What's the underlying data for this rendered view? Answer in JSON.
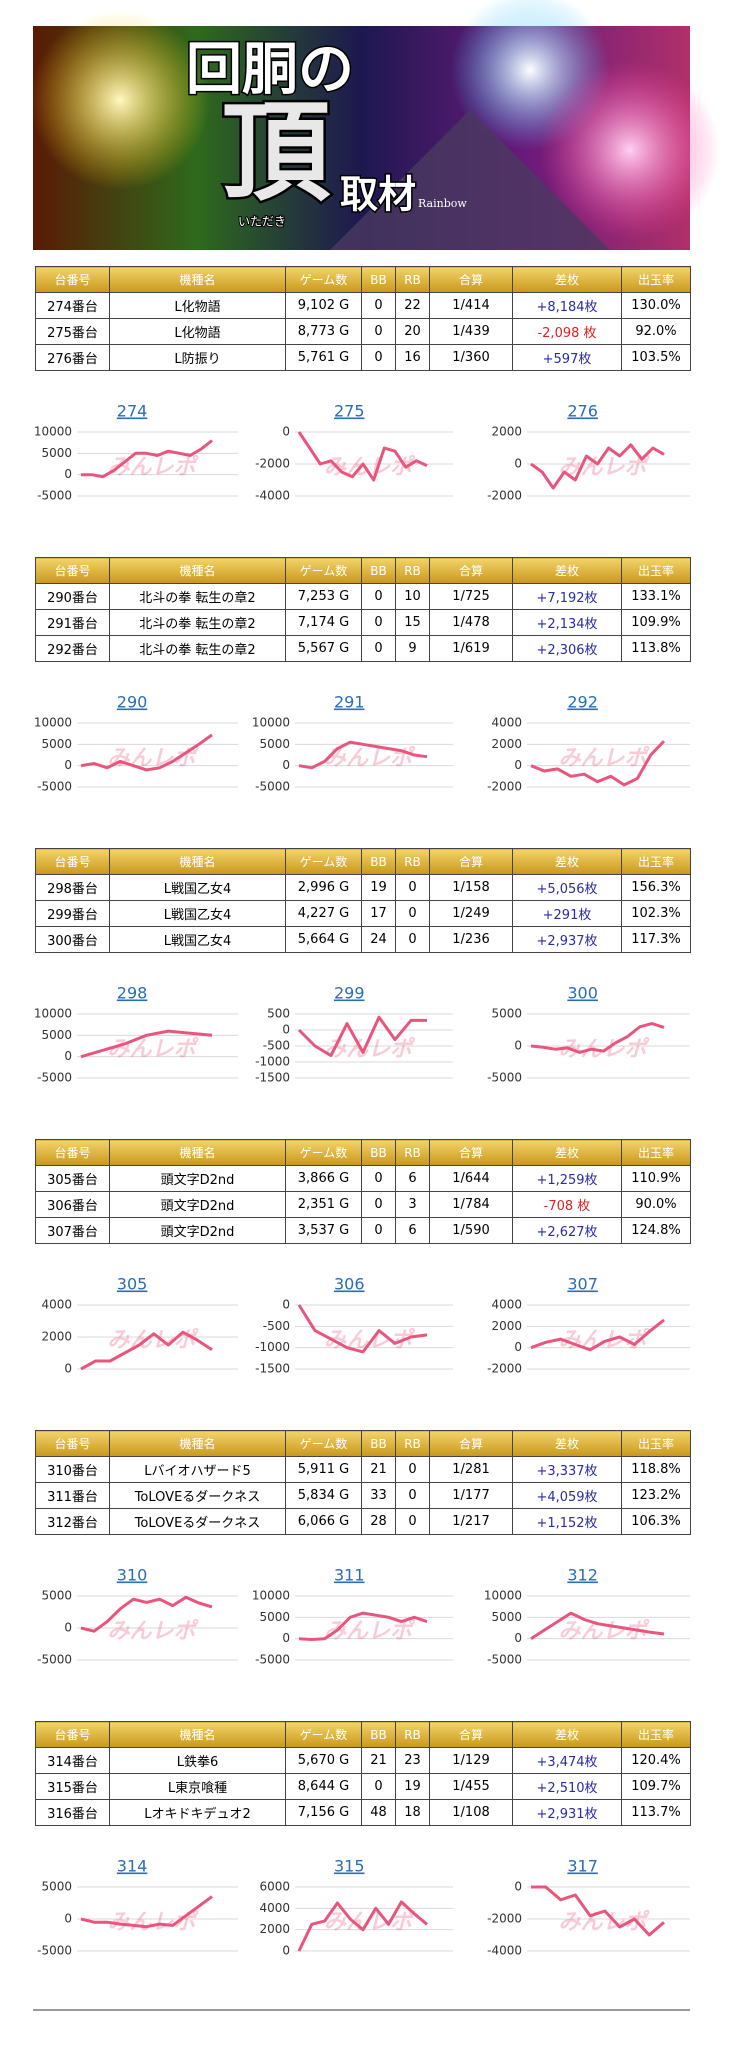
{
  "banner": {
    "line1": "回胴の",
    "big": "頂",
    "ruby": "いただき",
    "line2": "取材",
    "sub": "Rainbow"
  },
  "watermark": "みんレポ",
  "table_header": [
    "台番号",
    "機種名",
    "ゲーム数",
    "BB",
    "RB",
    "合算",
    "差枚",
    "出玉率"
  ],
  "tables": [
    {
      "rows": [
        [
          "274番台",
          "L化物語",
          "9,102 G",
          "0",
          "22",
          "1/414",
          "+8,184枚",
          "130.0%"
        ],
        [
          "275番台",
          "L化物語",
          "8,773 G",
          "0",
          "20",
          "1/439",
          "-2,098 枚",
          "92.0%"
        ],
        [
          "276番台",
          "L防振り",
          "5,761 G",
          "0",
          "16",
          "1/360",
          "+597枚",
          "103.5%"
        ]
      ]
    },
    {
      "rows": [
        [
          "290番台",
          "北斗の拳 転生の章2",
          "7,253 G",
          "0",
          "10",
          "1/725",
          "+7,192枚",
          "133.1%"
        ],
        [
          "291番台",
          "北斗の拳 転生の章2",
          "7,174 G",
          "0",
          "15",
          "1/478",
          "+2,134枚",
          "109.9%"
        ],
        [
          "292番台",
          "北斗の拳 転生の章2",
          "5,567 G",
          "0",
          "9",
          "1/619",
          "+2,306枚",
          "113.8%"
        ]
      ]
    },
    {
      "rows": [
        [
          "298番台",
          "L戦国乙女4",
          "2,996 G",
          "19",
          "0",
          "1/158",
          "+5,056枚",
          "156.3%"
        ],
        [
          "299番台",
          "L戦国乙女4",
          "4,227 G",
          "17",
          "0",
          "1/249",
          "+291枚",
          "102.3%"
        ],
        [
          "300番台",
          "L戦国乙女4",
          "5,664 G",
          "24",
          "0",
          "1/236",
          "+2,937枚",
          "117.3%"
        ]
      ]
    },
    {
      "rows": [
        [
          "305番台",
          "頭文字D2nd",
          "3,866 G",
          "0",
          "6",
          "1/644",
          "+1,259枚",
          "110.9%"
        ],
        [
          "306番台",
          "頭文字D2nd",
          "2,351 G",
          "0",
          "3",
          "1/784",
          "-708 枚",
          "90.0%"
        ],
        [
          "307番台",
          "頭文字D2nd",
          "3,537 G",
          "0",
          "6",
          "1/590",
          "+2,627枚",
          "124.8%"
        ]
      ]
    },
    {
      "rows": [
        [
          "310番台",
          "Lバイオハザード5",
          "5,911 G",
          "21",
          "0",
          "1/281",
          "+3,337枚",
          "118.8%"
        ],
        [
          "311番台",
          "ToLOVEるダークネス",
          "5,834 G",
          "33",
          "0",
          "1/177",
          "+4,059枚",
          "123.2%"
        ],
        [
          "312番台",
          "ToLOVEるダークネス",
          "6,066 G",
          "28",
          "0",
          "1/217",
          "+1,152枚",
          "106.3%"
        ]
      ]
    },
    {
      "rows": [
        [
          "314番台",
          "L鉄拳6",
          "5,670 G",
          "21",
          "23",
          "1/129",
          "+3,474枚",
          "120.4%"
        ],
        [
          "315番台",
          "L東京喰種",
          "8,644 G",
          "0",
          "19",
          "1/455",
          "+2,510枚",
          "109.7%"
        ],
        [
          "316番台",
          "Lオキドキデュオ2",
          "7,156 G",
          "48",
          "18",
          "1/108",
          "+2,931枚",
          "113.7%"
        ]
      ]
    }
  ],
  "chart_data": [
    {
      "type": "line",
      "title": "274",
      "color": "#e9557c",
      "ylim": [
        -5000,
        10000
      ],
      "yticks": [
        -5000,
        0,
        5000,
        10000
      ],
      "values": [
        0,
        0,
        -500,
        1000,
        3000,
        5000,
        5000,
        4500,
        5500,
        5000,
        4500,
        6000,
        8000
      ]
    },
    {
      "type": "line",
      "title": "275",
      "color": "#e9557c",
      "ylim": [
        -4000,
        0
      ],
      "yticks": [
        -4000,
        -2000,
        0
      ],
      "values": [
        0,
        -1000,
        -2000,
        -1800,
        -2500,
        -2800,
        -2000,
        -3000,
        -1000,
        -1200,
        -2200,
        -1800,
        -2100
      ]
    },
    {
      "type": "line",
      "title": "276",
      "color": "#e9557c",
      "ylim": [
        -2000,
        2000
      ],
      "yticks": [
        -2000,
        0,
        2000
      ],
      "values": [
        0,
        -500,
        -1500,
        -500,
        -1000,
        500,
        0,
        1000,
        500,
        1200,
        300,
        1000,
        600
      ]
    },
    {
      "type": "line",
      "title": "290",
      "color": "#e9557c",
      "ylim": [
        -5000,
        10000
      ],
      "yticks": [
        -5000,
        0,
        5000,
        10000
      ],
      "values": [
        0,
        500,
        -500,
        1000,
        0,
        -1000,
        -500,
        1000,
        3000,
        5000,
        7200
      ]
    },
    {
      "type": "line",
      "title": "291",
      "color": "#e9557c",
      "ylim": [
        -5000,
        10000
      ],
      "yticks": [
        -5000,
        0,
        5000,
        10000
      ],
      "values": [
        0,
        -500,
        1000,
        4000,
        5500,
        5000,
        4500,
        4000,
        3500,
        2500,
        2100
      ]
    },
    {
      "type": "line",
      "title": "292",
      "color": "#e9557c",
      "ylim": [
        -2000,
        4000
      ],
      "yticks": [
        -2000,
        0,
        2000,
        4000
      ],
      "values": [
        0,
        -500,
        -300,
        -1000,
        -800,
        -1500,
        -1000,
        -1800,
        -1200,
        1000,
        2300
      ]
    },
    {
      "type": "line",
      "title": "298",
      "color": "#e9557c",
      "ylim": [
        -5000,
        10000
      ],
      "yticks": [
        -5000,
        0,
        5000,
        10000
      ],
      "values": [
        0,
        1500,
        3000,
        5000,
        6000,
        5500,
        5000
      ]
    },
    {
      "type": "line",
      "title": "299",
      "color": "#e9557c",
      "ylim": [
        -1500,
        500
      ],
      "yticks": [
        -1500,
        -1000,
        -500,
        0,
        500
      ],
      "values": [
        0,
        -500,
        -800,
        200,
        -700,
        400,
        -300,
        300,
        300
      ]
    },
    {
      "type": "line",
      "title": "300",
      "color": "#e9557c",
      "ylim": [
        -5000,
        5000
      ],
      "yticks": [
        -5000,
        0,
        5000
      ],
      "values": [
        0,
        -200,
        -500,
        -300,
        -1000,
        -500,
        -800,
        500,
        1500,
        3000,
        3500,
        2900
      ]
    },
    {
      "type": "line",
      "title": "305",
      "color": "#e9557c",
      "ylim": [
        0,
        4000
      ],
      "yticks": [
        0,
        2000,
        4000
      ],
      "values": [
        0,
        500,
        500,
        1000,
        1500,
        2200,
        1500,
        2300,
        1800,
        1200
      ]
    },
    {
      "type": "line",
      "title": "306",
      "color": "#e9557c",
      "ylim": [
        -1500,
        0
      ],
      "yticks": [
        -1500,
        -1000,
        -500,
        0
      ],
      "values": [
        0,
        -600,
        -800,
        -1000,
        -1100,
        -600,
        -900,
        -750,
        -700
      ]
    },
    {
      "type": "line",
      "title": "307",
      "color": "#e9557c",
      "ylim": [
        -2000,
        4000
      ],
      "yticks": [
        -2000,
        0,
        2000,
        4000
      ],
      "values": [
        0,
        500,
        800,
        300,
        -200,
        600,
        1000,
        300,
        1500,
        2600
      ]
    },
    {
      "type": "line",
      "title": "310",
      "color": "#e9557c",
      "ylim": [
        -5000,
        5000
      ],
      "yticks": [
        -5000,
        0,
        5000
      ],
      "values": [
        0,
        -500,
        1000,
        3000,
        4500,
        4000,
        4500,
        3500,
        4800,
        3900,
        3300
      ]
    },
    {
      "type": "line",
      "title": "311",
      "color": "#e9557c",
      "ylim": [
        -5000,
        10000
      ],
      "yticks": [
        -5000,
        0,
        5000,
        10000
      ],
      "values": [
        0,
        -200,
        0,
        2000,
        5000,
        6000,
        5500,
        5000,
        4000,
        5000,
        4000
      ]
    },
    {
      "type": "line",
      "title": "312",
      "color": "#e9557c",
      "ylim": [
        -5000,
        10000
      ],
      "yticks": [
        -5000,
        0,
        5000,
        10000
      ],
      "values": [
        0,
        2000,
        4000,
        6000,
        4500,
        3500,
        3000,
        2500,
        2000,
        1500,
        1100
      ]
    },
    {
      "type": "line",
      "title": "314",
      "color": "#e9557c",
      "ylim": [
        -5000,
        5000
      ],
      "yticks": [
        -5000,
        0,
        5000
      ],
      "values": [
        0,
        -500,
        -500,
        -800,
        -1000,
        -1200,
        -800,
        -1000,
        500,
        2000,
        3500
      ]
    },
    {
      "type": "line",
      "title": "315",
      "color": "#e9557c",
      "ylim": [
        0,
        6000
      ],
      "yticks": [
        0,
        2000,
        4000,
        6000
      ],
      "values": [
        0,
        2500,
        2800,
        4500,
        3000,
        2000,
        4000,
        2500,
        4600,
        3500,
        2500
      ]
    },
    {
      "type": "line",
      "title": "317",
      "color": "#e9557c",
      "ylim": [
        -4000,
        0
      ],
      "yticks": [
        -4000,
        -2000,
        0
      ],
      "values": [
        0,
        0,
        -800,
        -500,
        -1800,
        -1500,
        -2500,
        -2000,
        -3000,
        -2200
      ]
    }
  ]
}
